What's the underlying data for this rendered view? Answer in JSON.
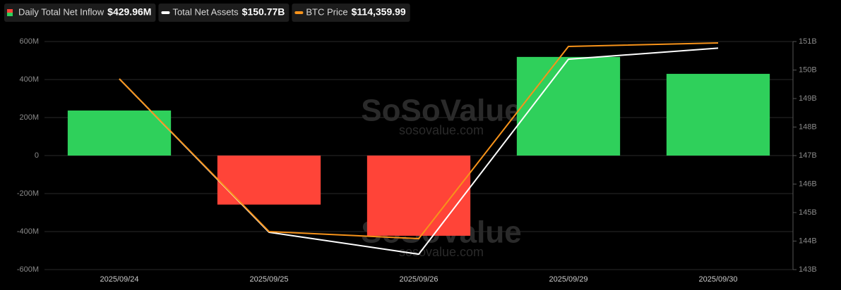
{
  "chart_data": {
    "type": "bar-line",
    "categories": [
      "2025/09/24",
      "2025/09/25",
      "2025/09/26",
      "2025/09/29",
      "2025/09/30"
    ],
    "series": [
      {
        "name": "Daily Total Net Inflow",
        "type": "bar",
        "axis": "y",
        "values": [
          237,
          -258,
          -422,
          519,
          429.96
        ],
        "color": "#2fd05b",
        "negative_color": "#ff4438",
        "latest": 429.96,
        "latest_label": "$429.96M"
      },
      {
        "name": "Total Net Assets",
        "type": "line",
        "axis": "y2",
        "values": [
          149.69,
          144.31,
          143.54,
          150.38,
          150.77
        ],
        "color": "#ffffff",
        "latest": 150.77,
        "latest_label": "$150.77B"
      },
      {
        "name": "BTC Price",
        "type": "line",
        "axis": "y3",
        "values": [
          113340,
          109000,
          108800,
          114260,
          114359.99
        ],
        "color": "#f7931a",
        "latest": 114359.99,
        "latest_label": "$114,359.99"
      }
    ],
    "ylim": [
      -600,
      600
    ],
    "yticks": [
      {
        "value": -600,
        "label": "-600M"
      },
      {
        "value": -400,
        "label": "-400M"
      },
      {
        "value": -200,
        "label": "-200M"
      },
      0,
      {
        "value": 200,
        "label": "200M"
      },
      {
        "value": 400,
        "label": "400M"
      },
      {
        "value": 600,
        "label": "600M"
      }
    ],
    "y2lim": [
      143,
      151
    ],
    "y2ticks": [
      {
        "value": 143,
        "label": "143B"
      },
      {
        "value": 144,
        "label": "144B"
      },
      {
        "value": 145,
        "label": "145B"
      },
      {
        "value": 146,
        "label": "146B"
      },
      {
        "value": 147,
        "label": "147B"
      },
      {
        "value": 148,
        "label": "148B"
      },
      {
        "value": 149,
        "label": "149B"
      },
      {
        "value": 150,
        "label": "150B"
      },
      {
        "value": 151,
        "label": "151B"
      }
    ],
    "y3lim": [
      107920,
      114400
    ],
    "grid": true,
    "watermark": "SoSoValue",
    "watermark_sub": "sosovalue.com"
  }
}
